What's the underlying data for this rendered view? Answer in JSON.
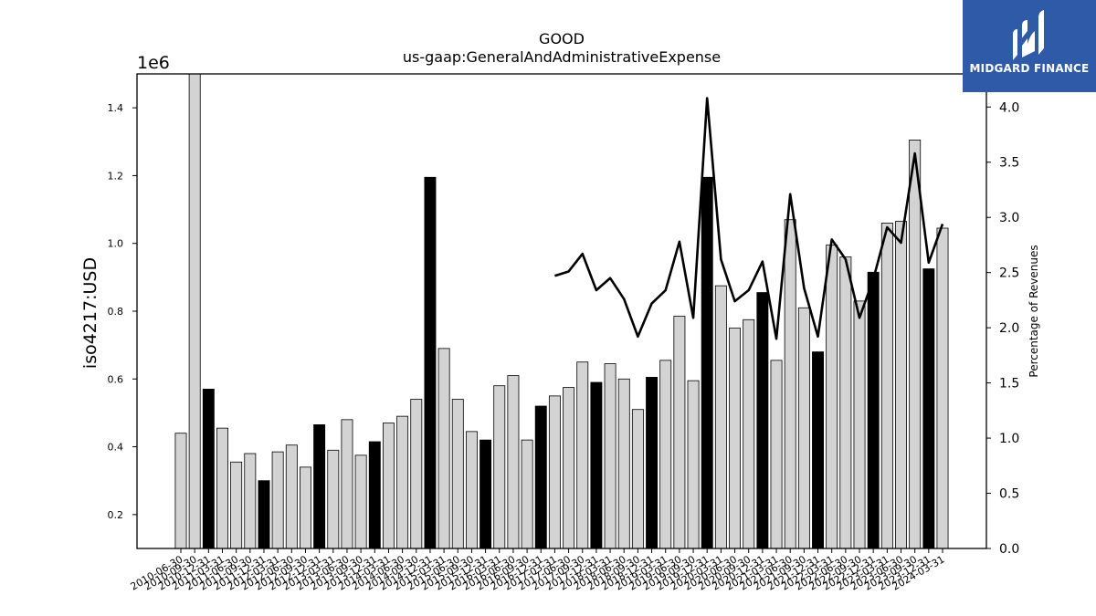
{
  "logo": {
    "text": "MIDGARD FINANCE"
  },
  "chart_data": {
    "type": "bar",
    "title": "GOOD",
    "subtitle": "us-gaap:GeneralAndAdministrativeExpense",
    "ylabel": "iso4217:USD",
    "y_offset_label": "1e6",
    "y2label": "Percentage of Revenues",
    "ylim": [
      0.1,
      1.5
    ],
    "y2lim": [
      0.0,
      4.3
    ],
    "yticks": [
      0.2,
      0.4,
      0.6,
      0.8,
      1.0,
      1.2,
      1.4
    ],
    "y2ticks": [
      0.0,
      0.5,
      1.0,
      1.5,
      2.0,
      2.5,
      3.0,
      3.5,
      4.0
    ],
    "colors": {
      "quarter": "#d3d3d3",
      "annual": "#000000",
      "line": "#000000"
    },
    "tick_label_dates": [
      "2010-06-30",
      "2010-09-30",
      "2010-12-31",
      "2011-03-31",
      "2011-06-30",
      "2011-09-30",
      "2011-12-31",
      "2012-03-31",
      "2012-06-30",
      "2012-09-30",
      "2012-12-31",
      "2013-03-31",
      "2013-06-30",
      "2013-09-30",
      "2013-12-31",
      "2014-03-31",
      "2014-06-30",
      "2014-09-30",
      "2014-12-31",
      "2015-03-31",
      "2015-06-30",
      "2015-09-30",
      "2015-12-31",
      "2016-03-31",
      "2016-06-30",
      "2016-09-30",
      "2016-12-31",
      "2017-03-31",
      "2017-06-30",
      "2017-09-30",
      "2017-12-31",
      "2018-03-31",
      "2018-06-30",
      "2018-09-30",
      "2018-12-31",
      "2019-03-31",
      "2019-06-30",
      "2019-09-30",
      "2019-12-31",
      "2020-03-31",
      "2020-06-30",
      "2020-09-30",
      "2020-12-31",
      "2021-03-31",
      "2021-06-30",
      "2021-09-30",
      "2021-12-31",
      "2022-03-31",
      "2022-06-30",
      "2022-09-30",
      "2022-12-31",
      "2023-03-31",
      "2023-06-30",
      "2023-09-30",
      "2023-12-31",
      "2024-03-31"
    ],
    "series": [
      {
        "type": "bar",
        "values": [
          0.44,
          1.52,
          0.57,
          0.455,
          0.355,
          0.38,
          0.3,
          0.385,
          0.405,
          0.34,
          0.465,
          0.39,
          0.48,
          0.375,
          0.415,
          0.47,
          0.49,
          0.54,
          1.195,
          0.69,
          0.54,
          0.445,
          0.42,
          0.58,
          0.61,
          0.42,
          0.52,
          0.55,
          0.575,
          0.65,
          0.59,
          0.645,
          0.6,
          0.51,
          0.605,
          0.655,
          0.785,
          0.595,
          1.195,
          0.875,
          0.75,
          0.775,
          0.855,
          0.655,
          1.07,
          0.81,
          0.68,
          0.995,
          0.96,
          0.83,
          0.915,
          1.06,
          1.065,
          1.305,
          0.925,
          1.045
        ],
        "annual": [
          false,
          false,
          true,
          false,
          false,
          false,
          true,
          false,
          false,
          false,
          true,
          false,
          false,
          false,
          true,
          false,
          false,
          false,
          true,
          false,
          false,
          false,
          true,
          false,
          false,
          false,
          true,
          false,
          false,
          false,
          true,
          false,
          false,
          false,
          true,
          false,
          false,
          false,
          true,
          false,
          false,
          false,
          true,
          false,
          false,
          false,
          true,
          false,
          false,
          false,
          true,
          false,
          false,
          false,
          true,
          false
        ]
      },
      {
        "type": "line",
        "axis": "right",
        "start_index": 27,
        "values": [
          2.47,
          2.51,
          2.67,
          2.34,
          2.45,
          2.26,
          1.92,
          2.22,
          2.34,
          2.78,
          2.09,
          4.08,
          2.62,
          2.24,
          2.34,
          2.6,
          1.9,
          3.21,
          2.36,
          1.92,
          2.8,
          2.62,
          2.09,
          2.44,
          2.91,
          2.77,
          3.58,
          2.59,
          2.94
        ]
      }
    ]
  }
}
